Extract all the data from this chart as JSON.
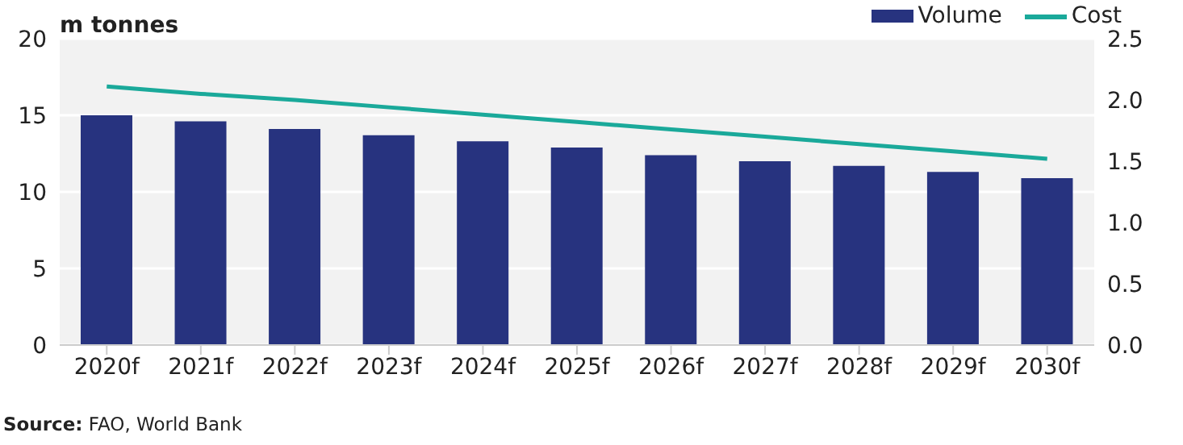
{
  "chart_data": {
    "type": "bar",
    "ylabel": "m tonnes",
    "categories": [
      "2020f",
      "2021f",
      "2022f",
      "2023f",
      "2024f",
      "2025f",
      "2026f",
      "2027f",
      "2028f",
      "2029f",
      "2030f"
    ],
    "series": [
      {
        "name": "Volume",
        "color": "#27337f",
        "values": [
          15.0,
          14.6,
          14.1,
          13.7,
          13.3,
          12.9,
          12.4,
          12.0,
          11.7,
          11.3,
          10.9
        ]
      },
      {
        "name": "Cost",
        "type": "line",
        "axis": "y2",
        "color": "#1aa99a",
        "values": [
          2.11,
          2.05,
          2.0,
          1.94,
          1.88,
          1.82,
          1.76,
          1.7,
          1.64,
          1.58,
          1.52
        ]
      }
    ],
    "ylim": [
      0,
      20
    ],
    "yticks": [
      0,
      5,
      10,
      15,
      20
    ],
    "y2lim": [
      0,
      2.5
    ],
    "y2ticks": [
      {
        "value": 0,
        "label": "0.0"
      },
      {
        "value": 0.5,
        "label": "0.5"
      },
      {
        "value": 1,
        "label": "1.0"
      },
      {
        "value": 1.5,
        "label": "1.5"
      },
      {
        "value": 2,
        "label": "2.0"
      },
      {
        "value": 2.5,
        "label": "2.5"
      }
    ],
    "grid": "y",
    "legend": "top right",
    "marker": "none",
    "annotations": [
      "Source: FAO, World Bank"
    ]
  }
}
